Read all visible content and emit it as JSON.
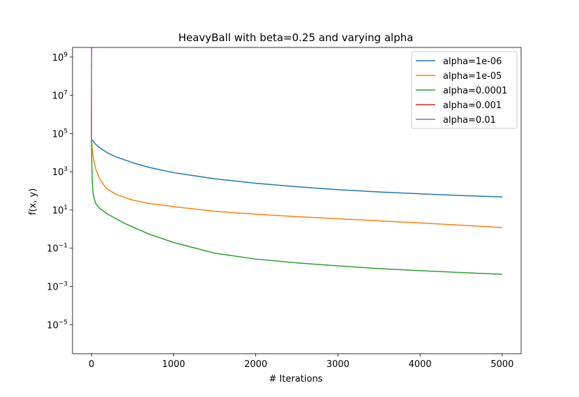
{
  "chart_data": {
    "type": "line",
    "title": "HeavyBall with beta=0.25 and varying alpha",
    "xlabel": "# Iterations",
    "ylabel": "f(x, y)",
    "xlim": [
      -230,
      5230
    ],
    "ylim": [
      3e-07,
      3200000000.0
    ],
    "yscale": "log",
    "grid": false,
    "legend_position": "upper right",
    "x_ticks": [
      {
        "value": 0,
        "label": "0"
      },
      {
        "value": 1000,
        "label": "1000"
      },
      {
        "value": 2000,
        "label": "2000"
      },
      {
        "value": 3000,
        "label": "3000"
      },
      {
        "value": 4000,
        "label": "4000"
      },
      {
        "value": 5000,
        "label": "5000"
      }
    ],
    "y_ticks": [
      {
        "value": 1e-05,
        "base": "10",
        "exp": "−5"
      },
      {
        "value": 0.001,
        "base": "10",
        "exp": "−3"
      },
      {
        "value": 0.1,
        "base": "10",
        "exp": "−1"
      },
      {
        "value": 10.0,
        "base": "10",
        "exp": "1"
      },
      {
        "value": 1000.0,
        "base": "10",
        "exp": "3"
      },
      {
        "value": 100000.0,
        "base": "10",
        "exp": "5"
      },
      {
        "value": 10000000.0,
        "base": "10",
        "exp": "7"
      },
      {
        "value": 1000000000.0,
        "base": "10",
        "exp": "9"
      }
    ],
    "series": [
      {
        "name": "alpha=1e-06",
        "color": "#1f77b4",
        "points": [
          [
            0,
            50000
          ],
          [
            50,
            28000
          ],
          [
            100,
            18000
          ],
          [
            200,
            9500
          ],
          [
            300,
            6000
          ],
          [
            500,
            3000
          ],
          [
            700,
            1700
          ],
          [
            1000,
            900
          ],
          [
            1500,
            430
          ],
          [
            2000,
            250
          ],
          [
            2500,
            165
          ],
          [
            3000,
            115
          ],
          [
            3500,
            88
          ],
          [
            4000,
            70
          ],
          [
            4500,
            57
          ],
          [
            5000,
            48
          ]
        ]
      },
      {
        "name": "alpha=1e-05",
        "color": "#ff7f0e",
        "points": [
          [
            0,
            50000
          ],
          [
            10,
            15000
          ],
          [
            25,
            4500
          ],
          [
            50,
            1500
          ],
          [
            100,
            420
          ],
          [
            150,
            200
          ],
          [
            200,
            120
          ],
          [
            300,
            65
          ],
          [
            500,
            33
          ],
          [
            700,
            22
          ],
          [
            1000,
            15
          ],
          [
            1500,
            8.5
          ],
          [
            2000,
            6
          ],
          [
            2500,
            4.5
          ],
          [
            3000,
            3.5
          ],
          [
            3500,
            2.7
          ],
          [
            4000,
            2.1
          ],
          [
            4500,
            1.6
          ],
          [
            5000,
            1.2
          ]
        ]
      },
      {
        "name": "alpha=0.0001",
        "color": "#2ca02c",
        "points": [
          [
            0,
            50000
          ],
          [
            5,
            2000
          ],
          [
            10,
            300
          ],
          [
            20,
            70
          ],
          [
            50,
            22
          ],
          [
            100,
            12
          ],
          [
            200,
            6
          ],
          [
            400,
            2
          ],
          [
            700,
            0.55
          ],
          [
            1000,
            0.2
          ],
          [
            1500,
            0.055
          ],
          [
            2000,
            0.027
          ],
          [
            2500,
            0.017
          ],
          [
            3000,
            0.012
          ],
          [
            3500,
            0.0085
          ],
          [
            4000,
            0.0067
          ],
          [
            4500,
            0.0053
          ],
          [
            5000,
            0.0043
          ]
        ]
      },
      {
        "name": "alpha=0.001",
        "color": "#d62728",
        "points": [
          [
            0,
            50000
          ],
          [
            2,
            3200000000.0
          ]
        ]
      },
      {
        "name": "alpha=0.01",
        "color": "#9467bd",
        "points": [
          [
            0,
            50000
          ],
          [
            2,
            3200000000.0
          ]
        ]
      }
    ]
  }
}
